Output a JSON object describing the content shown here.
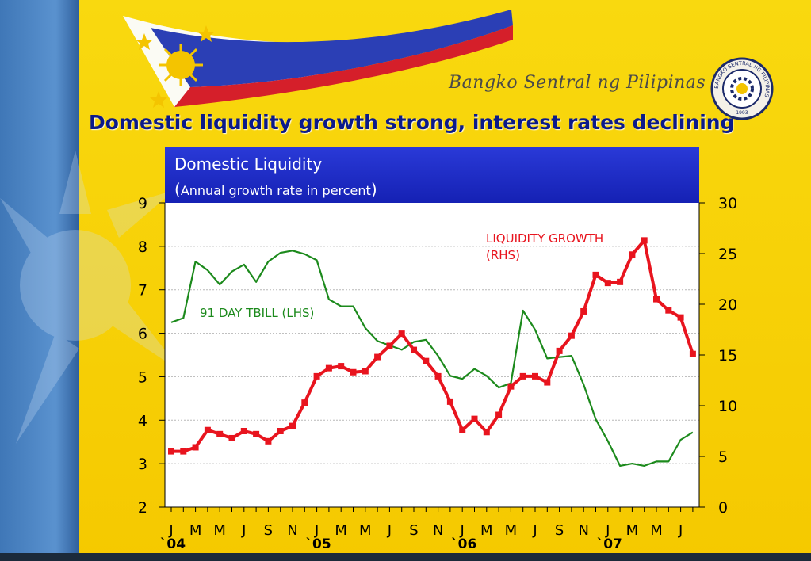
{
  "slide": {
    "title": "Domestic liquidity growth strong, interest rates declining",
    "bank_name": "Bangko Sentral ng Pilipinas",
    "seal_text": "BANGKO SENTRAL NG PILIPINAS",
    "seal_year": "1993"
  },
  "colors": {
    "background_yellow": "#f7d40a",
    "left_band_blue": "#4a86c6",
    "title_blue": "#0b1a8a",
    "header_blue": "#1a27c4",
    "liquidity_red": "#e8141e",
    "tbill_green": "#1c8a1c"
  },
  "chart_data": {
    "type": "line",
    "title": "Domestic Liquidity",
    "subtitle_open": "(",
    "subtitle": "Annual growth rate in percent",
    "subtitle_close": ")",
    "x_tick_labels": [
      "J",
      "M",
      "M",
      "J",
      "S",
      "N",
      "J",
      "M",
      "M",
      "J",
      "S",
      "N",
      "J",
      "M",
      "M",
      "J",
      "S",
      "N",
      "J",
      "M",
      "M",
      "J"
    ],
    "year_labels": [
      {
        "label": "`04",
        "at_tick": 0
      },
      {
        "label": "`05",
        "at_tick": 6
      },
      {
        "label": "`06",
        "at_tick": 12
      },
      {
        "label": "`07",
        "at_tick": 18
      }
    ],
    "months_per_tick": 2,
    "y_left": {
      "min": 2,
      "max": 9,
      "ticks": [
        2,
        3,
        4,
        5,
        6,
        7,
        8,
        9
      ]
    },
    "y_right": {
      "min": 0,
      "max": 30,
      "ticks": [
        0,
        5,
        10,
        15,
        20,
        25,
        30
      ]
    },
    "grid": true,
    "series": [
      {
        "name": "91 DAY TBILL (LHS)",
        "axis": "left",
        "color": "#1c8a1c",
        "markers": false,
        "values": [
          6.25,
          6.35,
          7.65,
          7.45,
          7.12,
          7.42,
          7.58,
          7.18,
          7.65,
          7.85,
          7.9,
          7.82,
          7.68,
          6.78,
          6.62,
          6.62,
          6.12,
          5.82,
          5.72,
          5.62,
          5.8,
          5.85,
          5.48,
          5.02,
          4.95,
          5.18,
          5.02,
          4.75,
          4.85,
          6.52,
          6.08,
          5.42,
          5.45,
          5.48,
          4.82,
          4.02,
          3.52,
          2.95,
          3.0,
          2.95,
          3.05,
          3.05,
          3.55,
          3.72
        ]
      },
      {
        "name": "LIQUIDITY GROWTH (RHS)",
        "axis": "right",
        "color": "#e8141e",
        "markers": true,
        "values": [
          5.5,
          5.5,
          5.9,
          7.6,
          7.2,
          6.8,
          7.5,
          7.2,
          6.5,
          7.5,
          8.0,
          10.3,
          12.9,
          13.7,
          13.9,
          13.3,
          13.4,
          14.8,
          15.9,
          17.1,
          15.5,
          14.4,
          12.9,
          10.4,
          7.6,
          8.7,
          7.4,
          9.1,
          11.9,
          12.9,
          12.9,
          12.3,
          15.4,
          16.9,
          19.3,
          22.9,
          22.1,
          22.2,
          24.9,
          26.3,
          20.5,
          19.4,
          18.7,
          15.1
        ]
      }
    ],
    "annotations": [
      {
        "text": "91 DAY TBILL (LHS)",
        "series": 0
      },
      {
        "text": "LIQUIDITY GROWTH",
        "series": 1
      },
      {
        "text": "(RHS)",
        "series": 1
      }
    ]
  }
}
